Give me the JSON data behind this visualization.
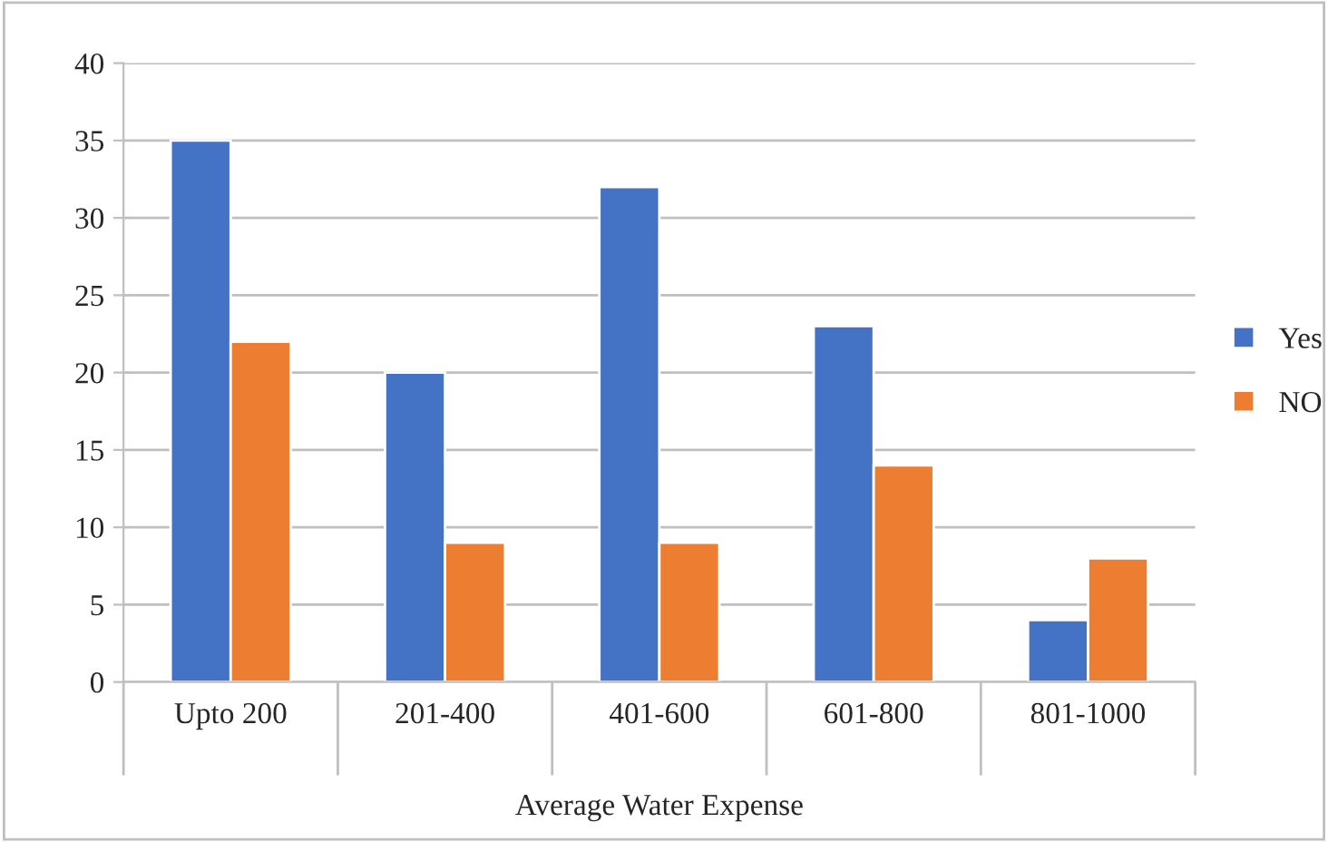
{
  "chart_data": {
    "type": "bar",
    "xlabel": "Average Water Expense",
    "categories": [
      "Upto 200",
      "201-400",
      "401-600",
      "601-800",
      "801-1000"
    ],
    "series": [
      {
        "name": "Yes",
        "color": "#4472c4",
        "values": [
          35,
          20,
          32,
          23,
          4
        ]
      },
      {
        "name": "NO",
        "color": "#ed7d31",
        "values": [
          22,
          9,
          9,
          14,
          8
        ]
      }
    ],
    "ylim": [
      0,
      40
    ],
    "yticks": [
      0,
      5,
      10,
      15,
      20,
      25,
      30,
      35,
      40
    ],
    "grid": "y",
    "legend": "right"
  }
}
